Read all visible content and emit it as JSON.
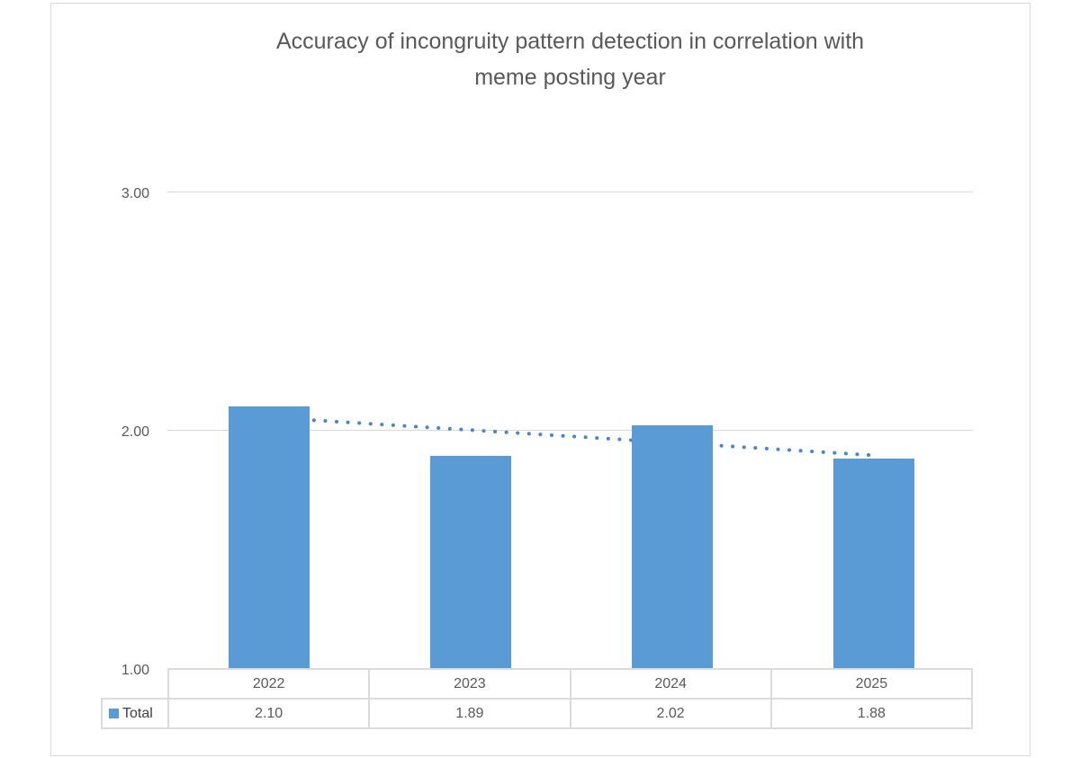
{
  "chart": {
    "title_lines": [
      "Accuracy of incongruity pattern detection in correlation with",
      "meme posting year"
    ]
  },
  "chart_data": {
    "type": "bar",
    "title": "Accuracy of incongruity pattern detection in correlation with meme posting year",
    "categories": [
      "2022",
      "2023",
      "2024",
      "2025"
    ],
    "series": [
      {
        "name": "Total",
        "values": [
          2.1,
          1.89,
          2.02,
          1.88
        ]
      }
    ],
    "value_labels": [
      "2.10",
      "1.89",
      "2.02",
      "1.88"
    ],
    "xlabel": "",
    "ylabel": "",
    "ylim": [
      1.0,
      3.0
    ],
    "yticks": [
      "1.00",
      "2.00",
      "3.00"
    ],
    "grid": true,
    "trendline": {
      "type": "linear",
      "style": "dotted",
      "series": "Total"
    },
    "legend": {
      "position": "data-table-left",
      "entries": [
        "Total"
      ]
    },
    "data_table_shown": true,
    "colors": {
      "bar": "#5B9BD5",
      "trendline": "#4A86C8",
      "text": "#595959",
      "grid": "#D9D9D9",
      "table_border": "#DBDBDB"
    }
  }
}
